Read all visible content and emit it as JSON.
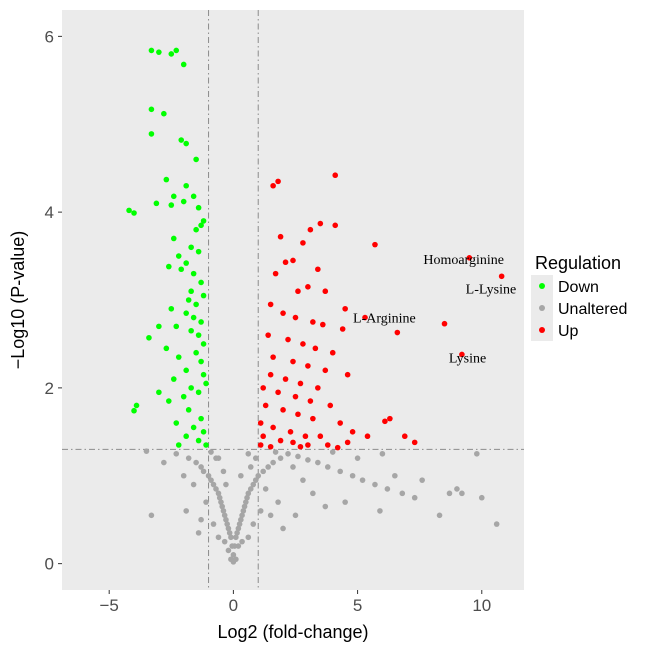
{
  "chart_data": {
    "type": "scatter",
    "title": "",
    "xlabel": "Log2 (fold-change)",
    "ylabel": "−Log10 (P-value)",
    "xlim": [
      -6.9,
      11.7
    ],
    "ylim": [
      -0.3,
      6.3
    ],
    "xticks": [
      -5,
      0,
      5,
      10
    ],
    "yticks": [
      0,
      2,
      4,
      6
    ],
    "xtick_labels": [
      "−5",
      "0",
      "5",
      "10"
    ],
    "ytick_labels": [
      "0",
      "2",
      "4",
      "6"
    ],
    "grid": false,
    "background": "#ebebeb",
    "thresholds": {
      "fc_left": -1,
      "fc_right": 1,
      "p": 1.3
    },
    "legend": {
      "title": "Regulation",
      "position": "right",
      "entries": [
        {
          "name": "Down",
          "color": "#00ff00"
        },
        {
          "name": "Unaltered",
          "color": "#a6a6a6"
        },
        {
          "name": "Up",
          "color": "#ff0000"
        }
      ]
    },
    "series": [
      {
        "name": "Down",
        "color": "#00ff00",
        "points": [
          [
            -3.3,
            5.84
          ],
          [
            -3.0,
            5.82
          ],
          [
            -2.5,
            5.8
          ],
          [
            -2.3,
            5.84
          ],
          [
            -2.0,
            5.68
          ],
          [
            -3.3,
            5.17
          ],
          [
            -2.8,
            5.12
          ],
          [
            -3.3,
            4.89
          ],
          [
            -2.1,
            4.82
          ],
          [
            -1.9,
            4.78
          ],
          [
            -1.5,
            4.6
          ],
          [
            -2.7,
            4.37
          ],
          [
            -1.9,
            4.3
          ],
          [
            -2.4,
            4.18
          ],
          [
            -1.6,
            4.18
          ],
          [
            -1.4,
            4.05
          ],
          [
            -4.2,
            4.02
          ],
          [
            -4.0,
            3.99
          ],
          [
            -3.1,
            4.1
          ],
          [
            -2.5,
            4.08
          ],
          [
            -2.0,
            4.12
          ],
          [
            -1.3,
            3.85
          ],
          [
            -1.2,
            3.9
          ],
          [
            -1.5,
            3.8
          ],
          [
            -1.7,
            3.6
          ],
          [
            -2.4,
            3.7
          ],
          [
            -2.2,
            3.5
          ],
          [
            -1.9,
            3.42
          ],
          [
            -1.4,
            3.55
          ],
          [
            -2.6,
            3.38
          ],
          [
            -2.1,
            3.35
          ],
          [
            -1.6,
            3.3
          ],
          [
            -1.3,
            3.2
          ],
          [
            -1.7,
            3.1
          ],
          [
            -1.8,
            3.0
          ],
          [
            -1.5,
            2.95
          ],
          [
            -1.2,
            3.05
          ],
          [
            -1.9,
            2.85
          ],
          [
            -1.6,
            2.8
          ],
          [
            -1.3,
            2.75
          ],
          [
            -1.7,
            2.65
          ],
          [
            -2.5,
            2.9
          ],
          [
            -2.3,
            2.7
          ],
          [
            -1.4,
            2.6
          ],
          [
            -1.2,
            2.5
          ],
          [
            -3.0,
            2.7
          ],
          [
            -3.4,
            2.57
          ],
          [
            -2.7,
            2.45
          ],
          [
            -2.2,
            2.35
          ],
          [
            -1.9,
            2.2
          ],
          [
            -1.5,
            2.4
          ],
          [
            -1.3,
            2.3
          ],
          [
            -1.2,
            2.15
          ],
          [
            -1.7,
            2.0
          ],
          [
            -2.4,
            2.1
          ],
          [
            -2.0,
            1.9
          ],
          [
            -1.4,
            1.95
          ],
          [
            -1.1,
            2.05
          ],
          [
            -3.0,
            1.95
          ],
          [
            -2.6,
            1.85
          ],
          [
            -1.8,
            1.75
          ],
          [
            -1.3,
            1.65
          ],
          [
            -3.9,
            1.8
          ],
          [
            -4.0,
            1.74
          ],
          [
            -2.3,
            1.6
          ],
          [
            -1.6,
            1.55
          ],
          [
            -1.2,
            1.5
          ],
          [
            -1.9,
            1.45
          ],
          [
            -1.4,
            1.4
          ],
          [
            -2.2,
            1.35
          ],
          [
            -1.1,
            1.35
          ]
        ]
      },
      {
        "name": "Up",
        "color": "#ff0000",
        "points": [
          [
            1.8,
            4.35
          ],
          [
            1.6,
            4.3
          ],
          [
            4.1,
            4.42
          ],
          [
            3.5,
            3.87
          ],
          [
            4.1,
            3.85
          ],
          [
            3.1,
            3.8
          ],
          [
            1.9,
            3.72
          ],
          [
            2.8,
            3.65
          ],
          [
            5.7,
            3.63
          ],
          [
            2.4,
            3.45
          ],
          [
            2.1,
            3.43
          ],
          [
            3.4,
            3.35
          ],
          [
            9.5,
            3.48
          ],
          [
            10.8,
            3.27
          ],
          [
            1.7,
            3.3
          ],
          [
            2.6,
            3.1
          ],
          [
            3.0,
            3.15
          ],
          [
            3.7,
            3.1
          ],
          [
            4.5,
            2.9
          ],
          [
            1.5,
            2.95
          ],
          [
            2.0,
            2.85
          ],
          [
            2.5,
            2.8
          ],
          [
            3.2,
            2.75
          ],
          [
            3.6,
            2.72
          ],
          [
            4.4,
            2.67
          ],
          [
            5.3,
            2.8
          ],
          [
            6.6,
            2.63
          ],
          [
            8.5,
            2.73
          ],
          [
            1.4,
            2.6
          ],
          [
            2.2,
            2.55
          ],
          [
            2.8,
            2.5
          ],
          [
            3.3,
            2.45
          ],
          [
            4.0,
            2.4
          ],
          [
            1.6,
            2.35
          ],
          [
            2.4,
            2.3
          ],
          [
            3.0,
            2.25
          ],
          [
            3.7,
            2.2
          ],
          [
            4.6,
            2.15
          ],
          [
            9.2,
            2.38
          ],
          [
            1.5,
            2.15
          ],
          [
            2.1,
            2.1
          ],
          [
            2.7,
            2.05
          ],
          [
            3.4,
            2.0
          ],
          [
            1.2,
            2.0
          ],
          [
            1.8,
            1.95
          ],
          [
            2.5,
            1.9
          ],
          [
            3.1,
            1.85
          ],
          [
            3.9,
            1.8
          ],
          [
            1.3,
            1.8
          ],
          [
            2.0,
            1.75
          ],
          [
            2.6,
            1.7
          ],
          [
            3.2,
            1.65
          ],
          [
            4.3,
            1.6
          ],
          [
            1.1,
            1.6
          ],
          [
            1.6,
            1.55
          ],
          [
            2.3,
            1.5
          ],
          [
            2.9,
            1.45
          ],
          [
            3.5,
            1.45
          ],
          [
            4.8,
            1.5
          ],
          [
            1.2,
            1.45
          ],
          [
            1.9,
            1.4
          ],
          [
            2.4,
            1.38
          ],
          [
            3.0,
            1.35
          ],
          [
            3.8,
            1.35
          ],
          [
            4.6,
            1.38
          ],
          [
            5.4,
            1.45
          ],
          [
            6.1,
            1.62
          ],
          [
            6.3,
            1.65
          ],
          [
            6.9,
            1.45
          ],
          [
            7.3,
            1.38
          ],
          [
            1.1,
            1.35
          ],
          [
            1.5,
            1.33
          ],
          [
            2.7,
            1.33
          ],
          [
            4.2,
            1.32
          ]
        ]
      },
      {
        "name": "Unaltered",
        "color": "#a6a6a6",
        "points": [
          [
            -3.5,
            1.28
          ],
          [
            -2.3,
            1.25
          ],
          [
            -1.8,
            1.2
          ],
          [
            -1.5,
            1.15
          ],
          [
            -1.3,
            1.1
          ],
          [
            -1.2,
            1.05
          ],
          [
            -1.0,
            1.0
          ],
          [
            -0.9,
            0.95
          ],
          [
            -0.8,
            0.9
          ],
          [
            -0.7,
            0.85
          ],
          [
            -0.6,
            0.8
          ],
          [
            -0.55,
            0.75
          ],
          [
            -0.5,
            0.7
          ],
          [
            -0.45,
            0.65
          ],
          [
            -0.4,
            0.6
          ],
          [
            -0.35,
            0.55
          ],
          [
            -0.3,
            0.5
          ],
          [
            -0.25,
            0.45
          ],
          [
            -0.2,
            0.4
          ],
          [
            -0.15,
            0.35
          ],
          [
            -0.1,
            0.3
          ],
          [
            -0.05,
            0.2
          ],
          [
            0.0,
            0.1
          ],
          [
            0.05,
            0.2
          ],
          [
            0.1,
            0.3
          ],
          [
            0.15,
            0.35
          ],
          [
            0.2,
            0.4
          ],
          [
            0.25,
            0.45
          ],
          [
            0.3,
            0.5
          ],
          [
            0.35,
            0.55
          ],
          [
            0.4,
            0.6
          ],
          [
            0.45,
            0.65
          ],
          [
            0.5,
            0.7
          ],
          [
            0.55,
            0.75
          ],
          [
            0.6,
            0.8
          ],
          [
            0.7,
            0.85
          ],
          [
            0.8,
            0.9
          ],
          [
            0.9,
            0.95
          ],
          [
            1.0,
            1.0
          ],
          [
            1.2,
            1.05
          ],
          [
            1.4,
            1.1
          ],
          [
            1.6,
            1.15
          ],
          [
            1.9,
            1.2
          ],
          [
            2.2,
            1.25
          ],
          [
            2.6,
            1.22
          ],
          [
            3.0,
            1.18
          ],
          [
            3.4,
            1.15
          ],
          [
            3.8,
            1.1
          ],
          [
            4.3,
            1.05
          ],
          [
            4.8,
            1.0
          ],
          [
            5.2,
            0.95
          ],
          [
            5.7,
            0.9
          ],
          [
            6.2,
            0.85
          ],
          [
            6.8,
            0.8
          ],
          [
            7.3,
            0.75
          ],
          [
            5.9,
            0.6
          ],
          [
            3.7,
            0.65
          ],
          [
            -0.9,
            1.27
          ],
          [
            -0.6,
            1.2
          ],
          [
            -0.3,
            0.9
          ],
          [
            0.6,
            1.25
          ],
          [
            0.9,
            1.2
          ],
          [
            1.3,
            0.85
          ],
          [
            -1.6,
            0.9
          ],
          [
            -2.0,
            1.0
          ],
          [
            -3.3,
            0.55
          ],
          [
            -0.7,
            1.2
          ],
          [
            -0.4,
            1.05
          ],
          [
            0.3,
            1.0
          ],
          [
            0.7,
            1.1
          ],
          [
            1.7,
            1.27
          ],
          [
            2.4,
            1.1
          ],
          [
            2.8,
            0.95
          ],
          [
            3.2,
            0.8
          ],
          [
            1.8,
            0.7
          ],
          [
            1.1,
            0.6
          ],
          [
            -1.1,
            0.7
          ],
          [
            -0.8,
            0.45
          ],
          [
            0.8,
            0.45
          ],
          [
            0.2,
            0.2
          ],
          [
            -0.2,
            0.15
          ],
          [
            -0.1,
            0.05
          ],
          [
            0.1,
            0.05
          ],
          [
            0.0,
            0.02
          ],
          [
            -0.6,
            0.3
          ],
          [
            0.6,
            0.3
          ],
          [
            -0.35,
            0.25
          ],
          [
            0.35,
            0.25
          ],
          [
            -1.3,
            0.5
          ],
          [
            1.5,
            0.55
          ],
          [
            8.3,
            0.55
          ],
          [
            8.7,
            0.8
          ],
          [
            9.0,
            0.85
          ],
          [
            9.2,
            0.8
          ],
          [
            9.8,
            1.25
          ],
          [
            10.0,
            0.75
          ],
          [
            10.6,
            0.45
          ],
          [
            7.6,
            0.95
          ],
          [
            6.5,
            1.0
          ],
          [
            4.0,
            1.27
          ],
          [
            5.0,
            1.2
          ],
          [
            -2.8,
            1.15
          ],
          [
            -1.9,
            0.6
          ],
          [
            -1.4,
            0.35
          ],
          [
            2.0,
            0.4
          ],
          [
            2.5,
            0.55
          ],
          [
            4.5,
            0.7
          ],
          [
            6.0,
            1.25
          ]
        ]
      }
    ],
    "annotations": [
      {
        "text": "Homoarginine",
        "x": 9.5,
        "y": 3.48
      },
      {
        "text": "L-Lysine",
        "x": 10.8,
        "y": 3.27
      },
      {
        "text": "L-Arginine",
        "x": 5.3,
        "y": 2.8
      },
      {
        "text": "Lysine",
        "x": 9.2,
        "y": 2.38
      }
    ]
  }
}
